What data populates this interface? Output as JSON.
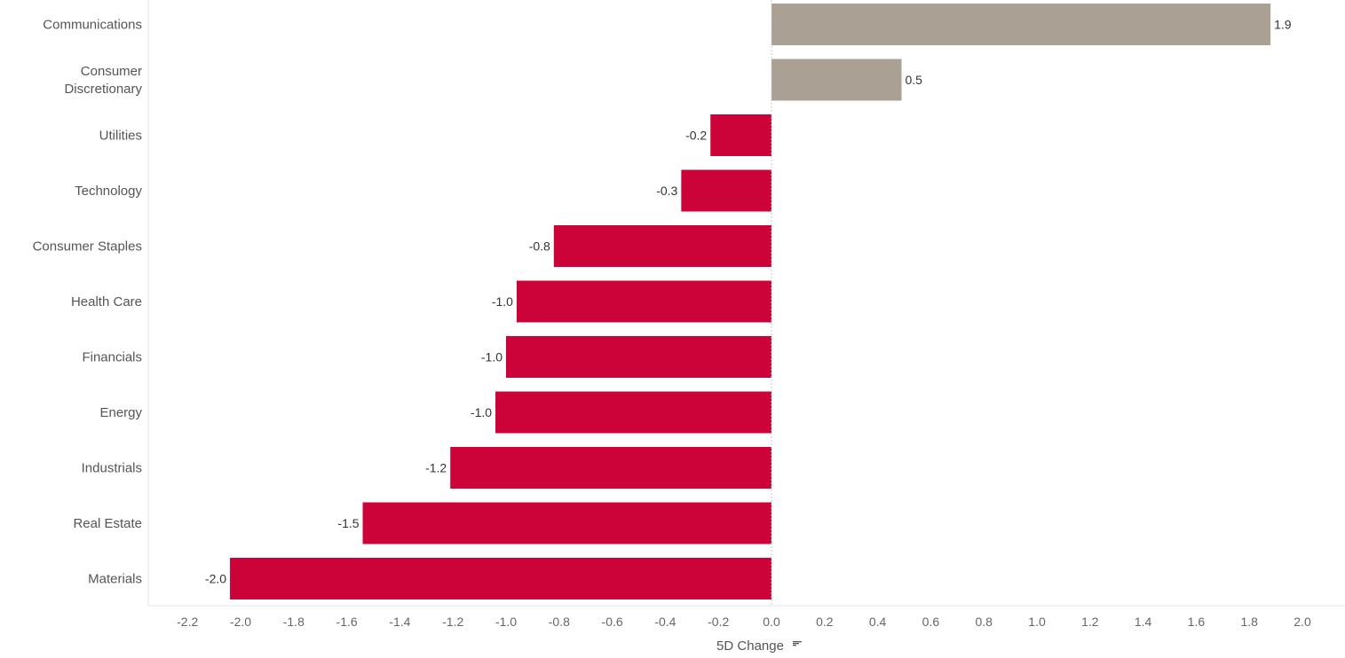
{
  "chart_data": {
    "type": "bar",
    "orientation": "horizontal",
    "categories": [
      "Communications",
      "Consumer Discretionary",
      "Utilities",
      "Technology",
      "Consumer Staples",
      "Health Care",
      "Financials",
      "Energy",
      "Industrials",
      "Real Estate",
      "Materials"
    ],
    "category_lines": [
      [
        "Communications"
      ],
      [
        "Consumer",
        "Discretionary"
      ],
      [
        "Utilities"
      ],
      [
        "Technology"
      ],
      [
        "Consumer Staples"
      ],
      [
        "Health Care"
      ],
      [
        "Financials"
      ],
      [
        "Energy"
      ],
      [
        "Industrials"
      ],
      [
        "Real Estate"
      ],
      [
        "Materials"
      ]
    ],
    "values": [
      1.88,
      0.49,
      -0.23,
      -0.34,
      -0.82,
      -0.96,
      -1.0,
      -1.04,
      -1.21,
      -1.54,
      -2.04
    ],
    "value_labels": [
      "1.9",
      "0.5",
      "-0.2",
      "-0.3",
      "-0.8",
      "-1.0",
      "-1.0",
      "-1.0",
      "-1.2",
      "-1.5",
      "-2.0"
    ],
    "x_ticks": [
      "-2.2",
      "-2.0",
      "-1.8",
      "-1.6",
      "-1.4",
      "-1.2",
      "-1.0",
      "-0.8",
      "-0.6",
      "-0.4",
      "-0.2",
      "0.0",
      "0.2",
      "0.4",
      "0.6",
      "0.8",
      "1.0",
      "1.2",
      "1.4",
      "1.6",
      "1.8",
      "2.0"
    ],
    "xlim": [
      -2.35,
      2.2
    ],
    "xlabel": "5D Change",
    "sort_indicator": "sort-descending-icon",
    "grid": false,
    "colors": {
      "positive": "#aba094",
      "negative": "#cc0339"
    }
  }
}
